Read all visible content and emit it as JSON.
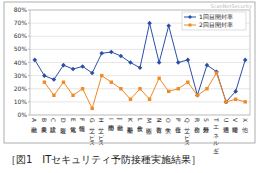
{
  "chart_data": {
    "type": "line",
    "title": "［図1　ITセキュリティ予防接種実施結果］",
    "annotation": "ScanNetSecurity",
    "categories": [
      "A金融",
      "B農業",
      "C建設",
      "D製造",
      "E電気",
      "F情報",
      "Gサービス",
      "Hサービス",
      "I卸小売",
      "J金融",
      "K不動産",
      "L飲食",
      "M医療",
      "N教育",
      "O大学",
      "P複合",
      "Qサービス",
      "R公務",
      "S分類外",
      "Tエネルギー",
      "U通信",
      "V運輸",
      "X他"
    ],
    "series": [
      {
        "name": "1回目開封率",
        "color": "#2b4fa8",
        "marker": "diamond",
        "values": [
          42,
          30,
          27,
          38,
          35,
          37,
          32,
          47,
          48,
          45,
          40,
          36,
          70,
          40,
          68,
          40,
          42,
          15,
          38,
          33,
          10,
          18,
          42
        ]
      },
      {
        "name": "2回目開封率",
        "color": "#f08a24",
        "marker": "square",
        "values": [
          null,
          25,
          15,
          25,
          15,
          20,
          5,
          30,
          25,
          20,
          12,
          20,
          12,
          28,
          18,
          20,
          25,
          15,
          20,
          32,
          10,
          12,
          10
        ]
      }
    ],
    "ylim": [
      0,
      80
    ],
    "yticks": [
      {
        "value": 0,
        "label": "0%"
      },
      {
        "value": 10,
        "label": "10%"
      },
      {
        "value": 20,
        "label": "20%"
      },
      {
        "value": 30,
        "label": "30%"
      },
      {
        "value": 40,
        "label": "40%"
      },
      {
        "value": 50,
        "label": "50%"
      },
      {
        "value": 60,
        "label": "60%"
      },
      {
        "value": 70,
        "label": "70%"
      },
      {
        "value": 80,
        "label": "80%"
      }
    ],
    "grid": true,
    "legend": "top-right"
  }
}
